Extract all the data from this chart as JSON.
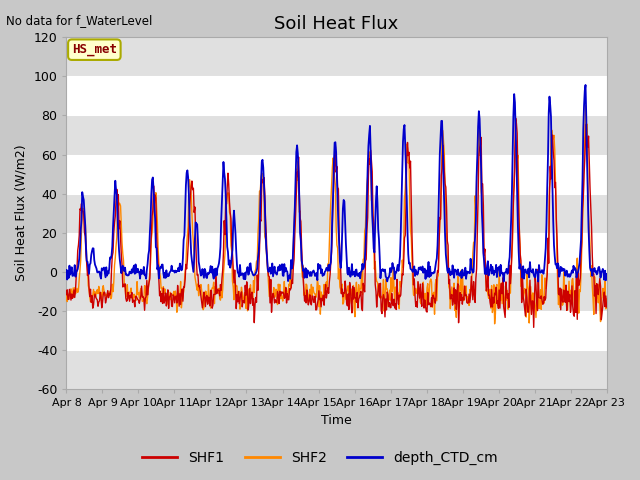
{
  "title": "Soil Heat Flux",
  "xlabel": "Time",
  "ylabel": "Soil Heat Flux (W/m2)",
  "no_data_text": "No data for f_WaterLevel",
  "station_label": "HS_met",
  "ylim": [
    -60,
    120
  ],
  "xlim": [
    0,
    15
  ],
  "x_tick_labels": [
    "Apr 8",
    "Apr 9",
    "Apr 10",
    "Apr 11",
    "Apr 12",
    "Apr 13",
    "Apr 14",
    "Apr 15",
    "Apr 16",
    "Apr 17",
    "Apr 18",
    "Apr 19",
    "Apr 20",
    "Apr 21",
    "Apr 22",
    "Apr 23"
  ],
  "yticks": [
    -60,
    -40,
    -20,
    0,
    20,
    40,
    60,
    80,
    100,
    120
  ],
  "colors": {
    "SHF1": "#cc0000",
    "SHF2": "#ff8800",
    "depth_CTD_cm": "#0000cc",
    "fig_bg": "#c8c8c8",
    "plot_bg": "#ffffff",
    "band_light": "#f0f0f0",
    "band_dark": "#e0e0e0",
    "station_box_fill": "#ffffcc",
    "station_box_edge": "#aaaa00"
  },
  "legend": {
    "entries": [
      "SHF1",
      "SHF2",
      "depth_CTD_cm"
    ],
    "colors": [
      "#cc0000",
      "#ff8800",
      "#0000cc"
    ]
  }
}
